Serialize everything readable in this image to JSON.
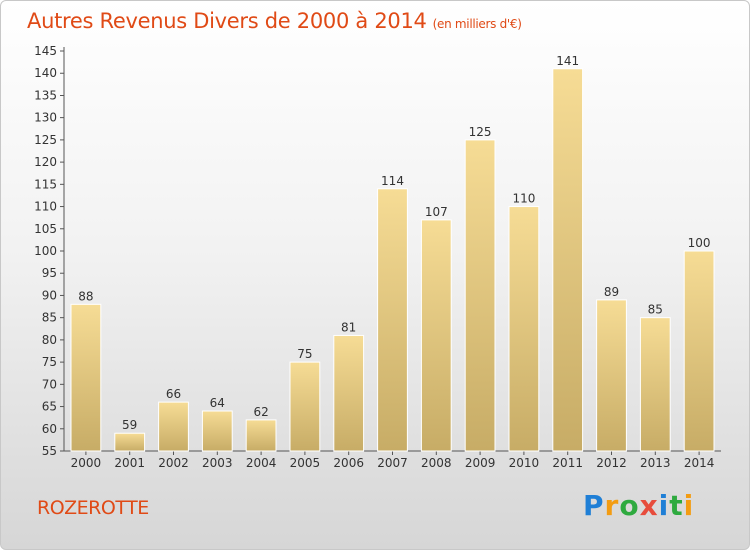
{
  "title": "Autres Revenus Divers de 2000 à 2014",
  "subtitle": "(en milliers d'€)",
  "town": "ROZEROTTE",
  "logo": {
    "letters": [
      "P",
      "r",
      "o",
      "x",
      "i",
      "t",
      "i"
    ],
    "colors": [
      "#1f7fd6",
      "#f39c12",
      "#2eaa3f",
      "#e74c3c",
      "#1f7fd6",
      "#2eaa3f",
      "#f39c12"
    ]
  },
  "chart_data": {
    "type": "bar",
    "categories": [
      "2000",
      "2001",
      "2002",
      "2003",
      "2004",
      "2005",
      "2006",
      "2007",
      "2008",
      "2009",
      "2010",
      "2011",
      "2012",
      "2013",
      "2014"
    ],
    "values": [
      88,
      59,
      66,
      64,
      62,
      75,
      81,
      114,
      107,
      125,
      110,
      141,
      89,
      85,
      100
    ],
    "data_labels": [
      "88",
      "59",
      "66",
      "64",
      "62",
      "75",
      "81",
      "114",
      "107",
      "125",
      "110",
      "141",
      "89",
      "85",
      "100"
    ],
    "y_ticks": [
      55,
      60,
      65,
      70,
      75,
      80,
      85,
      90,
      95,
      100,
      105,
      110,
      115,
      120,
      125,
      130,
      135,
      140,
      145
    ],
    "ylim": [
      55,
      145
    ],
    "grid": false,
    "legend": "none",
    "bar_color": "#e3c77e"
  }
}
